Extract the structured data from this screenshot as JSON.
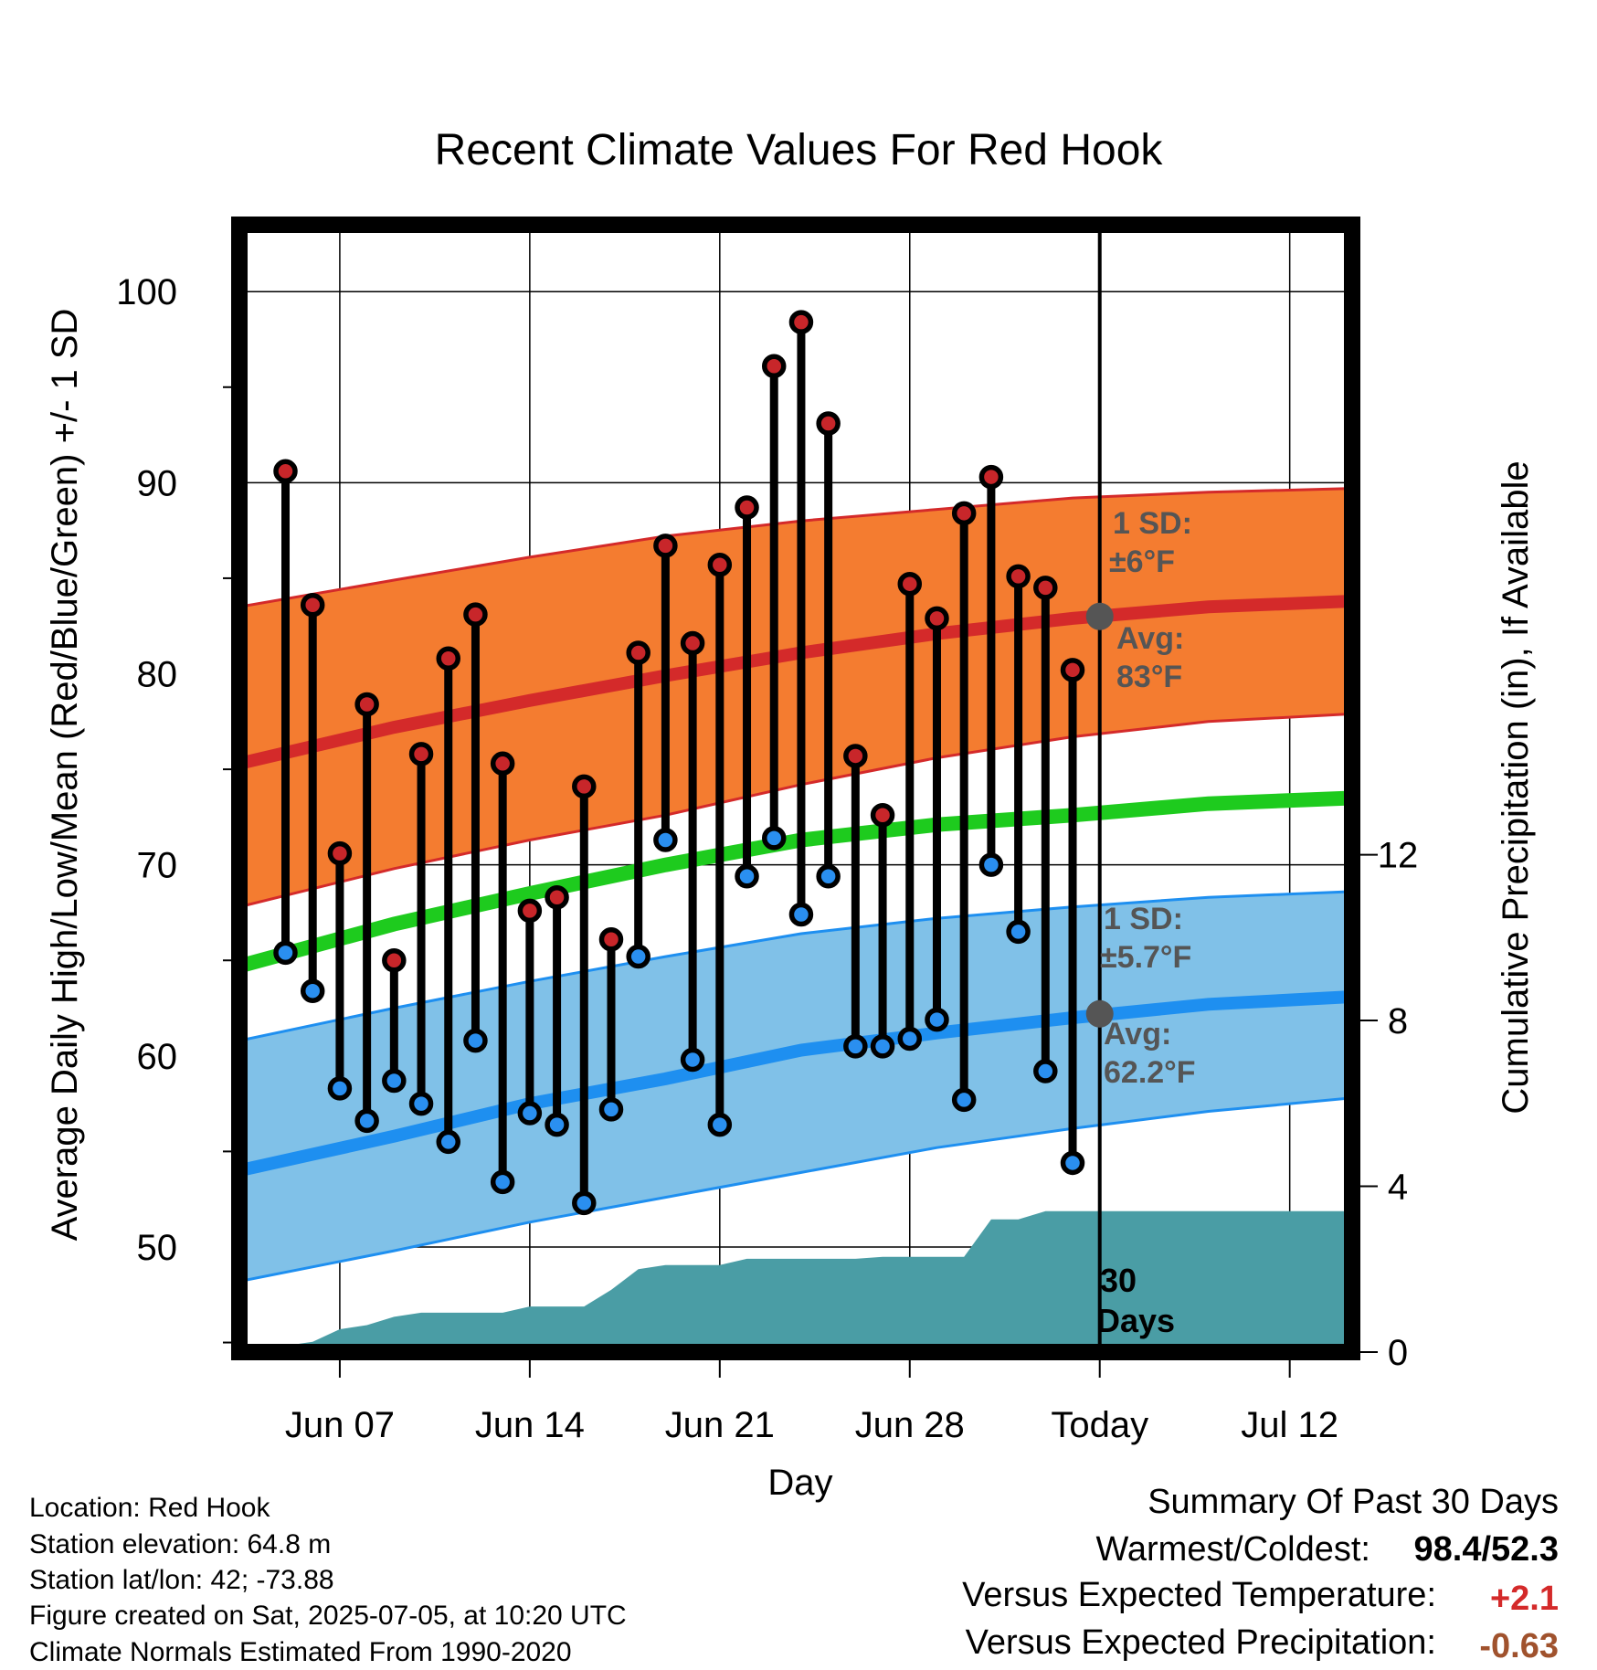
{
  "chart_data": {
    "type": "line",
    "title": "Recent Climate Values For Red Hook",
    "xlabel": "Day",
    "ylabel": "Average Daily High/Low/Mean (Red/Blue/Green) +/- 1 SD",
    "y2label": "Cumulative Precipitation (in), If Available",
    "ylim": [
      44.5,
      103.5
    ],
    "y2lim": [
      0,
      27.2
    ],
    "xlim": [
      -0.7,
      40.3
    ],
    "y_ticks": [
      50,
      60,
      70,
      80,
      90,
      100
    ],
    "y2_ticks": [
      0,
      4,
      8,
      12
    ],
    "x_ticks": [
      {
        "day": 3,
        "label": "Jun 07"
      },
      {
        "day": 10,
        "label": "Jun 14"
      },
      {
        "day": 17,
        "label": "Jun 21"
      },
      {
        "day": 24,
        "label": "Jun 28"
      },
      {
        "day": 31,
        "label": "Today"
      },
      {
        "day": 38,
        "label": "Jul 12"
      }
    ],
    "grid": true,
    "today_day": 31,
    "days_label": [
      "30",
      "Days"
    ],
    "daily": {
      "day": [
        1,
        2,
        3,
        4,
        5,
        6,
        7,
        8,
        9,
        10,
        11,
        12,
        13,
        14,
        15,
        16,
        17,
        18,
        19,
        20,
        21,
        22,
        23,
        24,
        25,
        26,
        27,
        28,
        29,
        30
      ],
      "high": [
        90.6,
        83.6,
        70.6,
        78.4,
        65.0,
        75.8,
        80.8,
        83.1,
        75.3,
        67.6,
        68.3,
        74.1,
        66.1,
        81.1,
        86.7,
        81.6,
        85.7,
        88.7,
        96.1,
        98.4,
        93.1,
        75.7,
        72.6,
        84.7,
        82.9,
        88.4,
        90.3,
        85.1,
        84.5,
        80.2
      ],
      "low": [
        65.4,
        63.4,
        58.3,
        56.6,
        58.7,
        57.5,
        55.5,
        60.8,
        53.4,
        57.0,
        56.4,
        52.3,
        57.2,
        65.2,
        71.3,
        59.8,
        56.4,
        69.4,
        71.4,
        67.4,
        69.4,
        60.5,
        60.5,
        60.9,
        61.9,
        57.7,
        70.0,
        66.5,
        59.2,
        54.4
      ]
    },
    "normals": {
      "day": [
        -0.7,
        5,
        10,
        15,
        20,
        25,
        30,
        35,
        40.3
      ],
      "high": [
        75.3,
        77.2,
        78.6,
        79.9,
        81.1,
        82.1,
        82.9,
        83.5,
        83.8
      ],
      "high_upper": [
        83.5,
        84.9,
        86.1,
        87.2,
        88.0,
        88.6,
        89.2,
        89.5,
        89.7
      ],
      "high_lower": [
        67.8,
        69.8,
        71.3,
        72.6,
        74.2,
        75.6,
        76.7,
        77.5,
        77.9
      ],
      "mean": [
        64.7,
        66.9,
        68.5,
        70.0,
        71.3,
        72.1,
        72.6,
        73.2,
        73.5
      ],
      "low": [
        54.0,
        55.8,
        57.5,
        58.8,
        60.3,
        61.2,
        62.0,
        62.7,
        63.1
      ],
      "low_upper": [
        60.8,
        62.5,
        63.9,
        65.2,
        66.4,
        67.2,
        67.8,
        68.3,
        68.6
      ],
      "low_lower": [
        48.2,
        49.8,
        51.3,
        52.6,
        53.9,
        55.2,
        56.2,
        57.1,
        57.8
      ]
    },
    "precip_cumulative": {
      "day": [
        1,
        1.5,
        2,
        3,
        4,
        5,
        6,
        7,
        8,
        9,
        10,
        11,
        12,
        13,
        14,
        15,
        16,
        17,
        18,
        19,
        20,
        21,
        22,
        23,
        24,
        25,
        26,
        27,
        28,
        29,
        30,
        31,
        40.3
      ],
      "value": [
        0.0,
        0.2,
        0.25,
        0.55,
        0.65,
        0.85,
        0.95,
        0.95,
        0.95,
        0.95,
        1.1,
        1.1,
        1.1,
        1.5,
        2.0,
        2.1,
        2.1,
        2.1,
        2.25,
        2.25,
        2.25,
        2.25,
        2.25,
        2.3,
        2.3,
        2.3,
        2.3,
        3.2,
        3.2,
        3.4,
        3.4,
        3.4,
        3.4
      ]
    },
    "today_marker": {
      "high_avg": 83.0,
      "low_avg": 62.2
    },
    "annotations": {
      "high_sd": [
        "1 SD:",
        "±6°F"
      ],
      "high_avg": [
        "Avg:",
        "83°F"
      ],
      "low_sd": [
        "1 SD:",
        "±5.7°F"
      ],
      "low_avg": [
        "Avg:",
        "62.2°F"
      ]
    },
    "colors": {
      "high_band": "#f47c30",
      "high_line": "#d42a2a",
      "low_band": "#80c1e8",
      "low_line": "#1e8ff0",
      "mean_line": "#1ecb1e",
      "precip": "#4a9da5",
      "high_dot": "#c8262a",
      "low_dot": "#2a8ff0",
      "marker_gray": "#555555"
    }
  },
  "info": {
    "location": "Location: Red Hook",
    "elevation": "Station elevation: 64.8 m",
    "latlon": "Station lat/lon: 42; -73.88",
    "created": "Figure created on Sat, 2025-07-05, at 10:20 UTC",
    "normals": "Climate Normals Estimated From 1990-2020"
  },
  "summary": {
    "title": "Summary Of Past 30 Days",
    "warm_cold_label": "Warmest/Coldest:",
    "warm_cold_value": "98.4/52.3",
    "temp_label": "Versus Expected Temperature:",
    "temp_value": "+2.1",
    "temp_color": "#d42a2a",
    "precip_label": "Versus Expected Precipitation:",
    "precip_value": "-0.63",
    "precip_color": "#a0522d"
  }
}
